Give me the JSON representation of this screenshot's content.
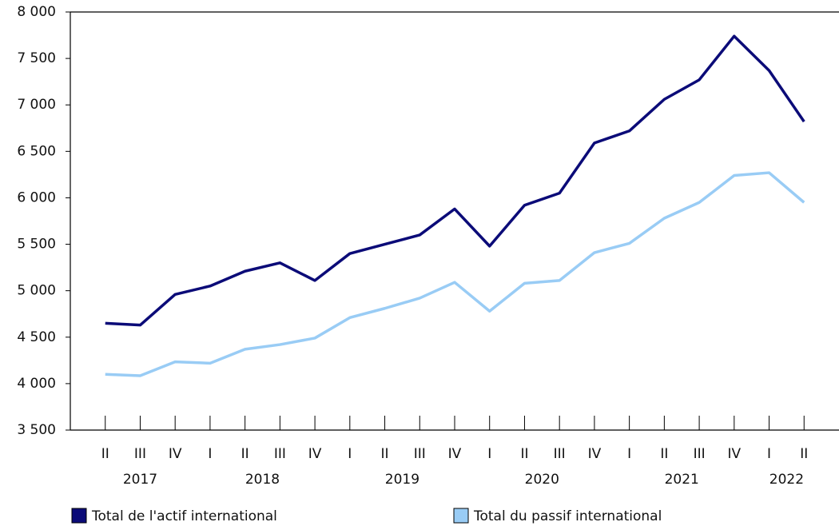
{
  "chart_data": {
    "type": "line",
    "categories": [
      "II",
      "III",
      "IV",
      "I",
      "II",
      "III",
      "IV",
      "I",
      "II",
      "III",
      "IV",
      "I",
      "II",
      "III",
      "IV",
      "I",
      "II",
      "III",
      "IV",
      "I",
      "II"
    ],
    "year_groups": [
      {
        "label": "2017",
        "count": 3
      },
      {
        "label": "2018",
        "count": 4
      },
      {
        "label": "2019",
        "count": 4
      },
      {
        "label": "2020",
        "count": 4
      },
      {
        "label": "2021",
        "count": 4
      },
      {
        "label": "2022",
        "count": 2
      }
    ],
    "series": [
      {
        "name": "Total de l'actif international",
        "color": "#0b0b78",
        "values": [
          4650,
          4630,
          4960,
          5050,
          5210,
          5300,
          5110,
          5400,
          5500,
          5600,
          5880,
          5480,
          5920,
          6050,
          6590,
          6720,
          7060,
          7270,
          7740,
          7370,
          6820
        ]
      },
      {
        "name": "Total du passif international",
        "color": "#99ccf5",
        "values": [
          4100,
          4085,
          4235,
          4220,
          4370,
          4420,
          4490,
          4710,
          4810,
          4920,
          5090,
          4780,
          5080,
          5110,
          5410,
          5510,
          5780,
          5950,
          6240,
          6270,
          5950
        ]
      }
    ],
    "ylim": [
      3500,
      8000
    ],
    "yticks": [
      {
        "value": 3500,
        "label": "3 500"
      },
      {
        "value": 4000,
        "label": "4 000"
      },
      {
        "value": 4500,
        "label": "4 500"
      },
      {
        "value": 5000,
        "label": "5 000"
      },
      {
        "value": 5500,
        "label": "5 500"
      },
      {
        "value": 6000,
        "label": "6 000"
      },
      {
        "value": 6500,
        "label": "6 500"
      },
      {
        "value": 7000,
        "label": "7 000"
      },
      {
        "value": 7500,
        "label": "7 500"
      },
      {
        "value": 8000,
        "label": "8 000"
      }
    ],
    "legend": "bottom"
  }
}
